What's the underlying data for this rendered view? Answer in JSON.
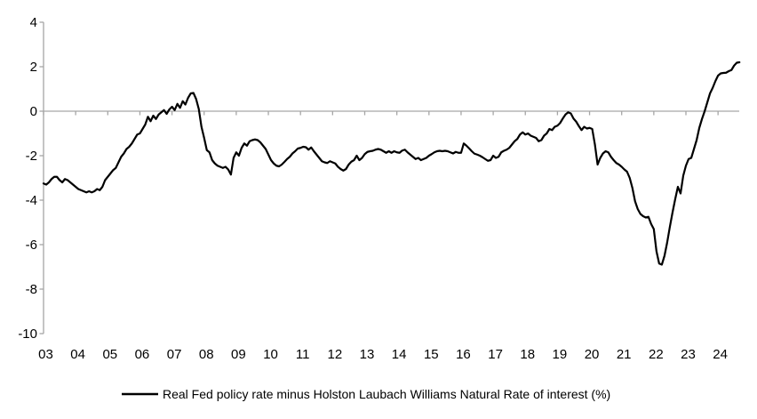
{
  "chart_data": {
    "type": "line",
    "title": "",
    "legend": "Real Fed policy rate minus Holston Laubach Williams Natural Rate of interest (%)",
    "x_start": "2003-01",
    "x_end": "2024-09",
    "frequency": "monthly",
    "ylim": [
      -10,
      4
    ],
    "y_ticks": [
      4,
      2,
      0,
      -2,
      -4,
      -6,
      -8,
      -10
    ],
    "x_tick_labels": [
      "03",
      "04",
      "05",
      "06",
      "07",
      "08",
      "09",
      "10",
      "11",
      "12",
      "13",
      "14",
      "15",
      "16",
      "17",
      "18",
      "19",
      "20",
      "21",
      "22",
      "23",
      "24"
    ],
    "grid": "zero-line-only",
    "legend_position": "bottom-center",
    "line_color": "#000000",
    "axis_color": "#a6a6a6",
    "series": [
      {
        "name": "Real Fed policy rate minus Holston Laubach Williams Natural Rate of interest (%)",
        "values": [
          -3.25,
          -3.3,
          -3.2,
          -3.05,
          -2.95,
          -2.95,
          -3.1,
          -3.2,
          -3.05,
          -3.1,
          -3.2,
          -3.3,
          -3.4,
          -3.5,
          -3.55,
          -3.6,
          -3.65,
          -3.6,
          -3.65,
          -3.6,
          -3.5,
          -3.55,
          -3.4,
          -3.1,
          -2.95,
          -2.8,
          -2.65,
          -2.55,
          -2.3,
          -2.05,
          -1.9,
          -1.7,
          -1.6,
          -1.45,
          -1.25,
          -1.05,
          -1.0,
          -0.8,
          -0.6,
          -0.25,
          -0.45,
          -0.2,
          -0.35,
          -0.15,
          -0.05,
          0.05,
          -0.12,
          0.08,
          0.2,
          0.05,
          0.33,
          0.15,
          0.45,
          0.3,
          0.6,
          0.8,
          0.82,
          0.55,
          0.1,
          -0.7,
          -1.2,
          -1.75,
          -1.85,
          -2.2,
          -2.35,
          -2.45,
          -2.5,
          -2.55,
          -2.5,
          -2.62,
          -2.85,
          -2.1,
          -1.85,
          -2.0,
          -1.65,
          -1.45,
          -1.55,
          -1.35,
          -1.3,
          -1.27,
          -1.3,
          -1.4,
          -1.55,
          -1.7,
          -1.95,
          -2.2,
          -2.35,
          -2.45,
          -2.48,
          -2.4,
          -2.28,
          -2.15,
          -2.05,
          -1.9,
          -1.8,
          -1.68,
          -1.65,
          -1.6,
          -1.62,
          -1.73,
          -1.63,
          -1.8,
          -1.95,
          -2.1,
          -2.25,
          -2.3,
          -2.33,
          -2.25,
          -2.3,
          -2.35,
          -2.5,
          -2.6,
          -2.67,
          -2.6,
          -2.4,
          -2.27,
          -2.2,
          -2.0,
          -2.2,
          -2.1,
          -1.93,
          -1.83,
          -1.8,
          -1.78,
          -1.73,
          -1.7,
          -1.73,
          -1.8,
          -1.87,
          -1.8,
          -1.87,
          -1.8,
          -1.85,
          -1.87,
          -1.77,
          -1.73,
          -1.85,
          -1.95,
          -2.05,
          -2.15,
          -2.1,
          -2.2,
          -2.15,
          -2.1,
          -2.0,
          -1.93,
          -1.85,
          -1.8,
          -1.78,
          -1.8,
          -1.78,
          -1.8,
          -1.85,
          -1.9,
          -1.83,
          -1.87,
          -1.87,
          -1.45,
          -1.55,
          -1.67,
          -1.8,
          -1.91,
          -1.95,
          -2.0,
          -2.07,
          -2.15,
          -2.23,
          -2.2,
          -2.0,
          -2.1,
          -2.05,
          -1.85,
          -1.78,
          -1.73,
          -1.65,
          -1.5,
          -1.35,
          -1.25,
          -1.05,
          -0.95,
          -1.05,
          -1.0,
          -1.1,
          -1.15,
          -1.2,
          -1.35,
          -1.3,
          -1.1,
          -1.0,
          -0.8,
          -0.85,
          -0.7,
          -0.65,
          -0.53,
          -0.33,
          -0.15,
          -0.05,
          -0.1,
          -0.33,
          -0.47,
          -0.67,
          -0.85,
          -0.7,
          -0.78,
          -0.75,
          -0.8,
          -1.5,
          -2.4,
          -2.1,
          -1.9,
          -1.8,
          -1.85,
          -2.05,
          -2.2,
          -2.33,
          -2.4,
          -2.5,
          -2.62,
          -2.72,
          -3.0,
          -3.45,
          -4.05,
          -4.4,
          -4.62,
          -4.72,
          -4.78,
          -4.75,
          -5.07,
          -5.3,
          -6.3,
          -6.85,
          -6.9,
          -6.5,
          -5.9,
          -5.2,
          -4.55,
          -3.95,
          -3.4,
          -3.7,
          -2.9,
          -2.45,
          -2.15,
          -2.1,
          -1.7,
          -1.3,
          -0.75,
          -0.35,
          0.0,
          0.4,
          0.8,
          1.05,
          1.35,
          1.6,
          1.7,
          1.72,
          1.73,
          1.8,
          1.85,
          2.05,
          2.18,
          2.2
        ]
      }
    ]
  }
}
